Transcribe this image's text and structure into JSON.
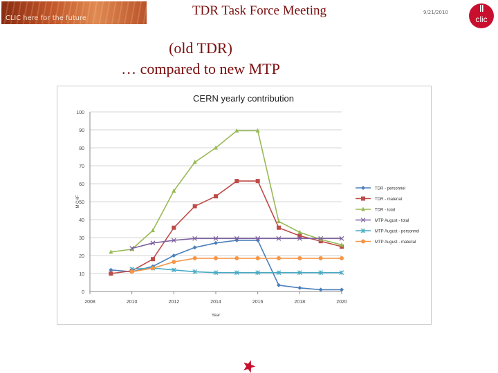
{
  "header": {
    "banner_text": "CLIC here for the future",
    "title": "TDR Task Force Meeting",
    "date": "9/21/2010",
    "logo_text": "clic"
  },
  "subtitle": {
    "line1": "(old TDR)",
    "line2": "… compared to new MTP"
  },
  "colors": {
    "title": "#7a0e0e",
    "logo": "#c8102e",
    "star": "#c8102e"
  },
  "chart_data": {
    "type": "line",
    "title": "CERN yearly contribution",
    "xlabel": "Year",
    "ylabel": "M CHF",
    "xlim": [
      2008,
      2020
    ],
    "ylim": [
      0,
      100
    ],
    "x_ticks": [
      2008,
      2010,
      2012,
      2014,
      2016,
      2018,
      2020
    ],
    "y_ticks": [
      0,
      10,
      20,
      30,
      40,
      50,
      60,
      70,
      80,
      90,
      100
    ],
    "grid": "horizontal",
    "legend_position": "right",
    "series": [
      {
        "name": "TDR - personnel",
        "color": "#4a7ebb",
        "marker": "diamond",
        "x": [
          2009,
          2010,
          2011,
          2012,
          2013,
          2014,
          2015,
          2016,
          2017,
          2018,
          2019,
          2020
        ],
        "y": [
          12,
          11,
          14,
          20,
          24.5,
          27,
          28.5,
          28.5,
          3.5,
          2,
          1,
          1
        ]
      },
      {
        "name": "TDR - material",
        "color": "#be4b48",
        "marker": "square",
        "x": [
          2009,
          2010,
          2011,
          2012,
          2013,
          2014,
          2015,
          2016,
          2017,
          2018,
          2019,
          2020
        ],
        "y": [
          10,
          11.5,
          18,
          35.5,
          47.5,
          53,
          61.5,
          61.5,
          35.5,
          31,
          28,
          25
        ]
      },
      {
        "name": "TDR - total",
        "color": "#98b954",
        "marker": "triangle",
        "x": [
          2009,
          2010,
          2011,
          2012,
          2013,
          2014,
          2015,
          2016,
          2017,
          2018,
          2019,
          2020
        ],
        "y": [
          22,
          23.5,
          34,
          56,
          72,
          80,
          89.5,
          89.5,
          39,
          33,
          29,
          26
        ]
      },
      {
        "name": "MTP August - total",
        "color": "#7d60a0",
        "marker": "x",
        "x": [
          2010,
          2011,
          2012,
          2013,
          2014,
          2015,
          2016,
          2017,
          2018,
          2019,
          2020
        ],
        "y": [
          24,
          27,
          28.5,
          29.5,
          29.5,
          29.5,
          29.5,
          29.5,
          29.5,
          29.5,
          29.5
        ]
      },
      {
        "name": "MTP August - personnel",
        "color": "#46aac5",
        "marker": "asterisk",
        "x": [
          2010,
          2011,
          2012,
          2013,
          2014,
          2015,
          2016,
          2017,
          2018,
          2019,
          2020
        ],
        "y": [
          12.5,
          13,
          12,
          11,
          10.5,
          10.5,
          10.5,
          10.5,
          10.5,
          10.5,
          10.5
        ]
      },
      {
        "name": "MTP August - material",
        "color": "#f79646",
        "marker": "circle",
        "x": [
          2010,
          2011,
          2012,
          2013,
          2014,
          2015,
          2016,
          2017,
          2018,
          2019,
          2020
        ],
        "y": [
          11,
          13,
          16.5,
          18.5,
          18.5,
          18.5,
          18.5,
          18.5,
          18.5,
          18.5,
          18.5
        ]
      }
    ]
  }
}
